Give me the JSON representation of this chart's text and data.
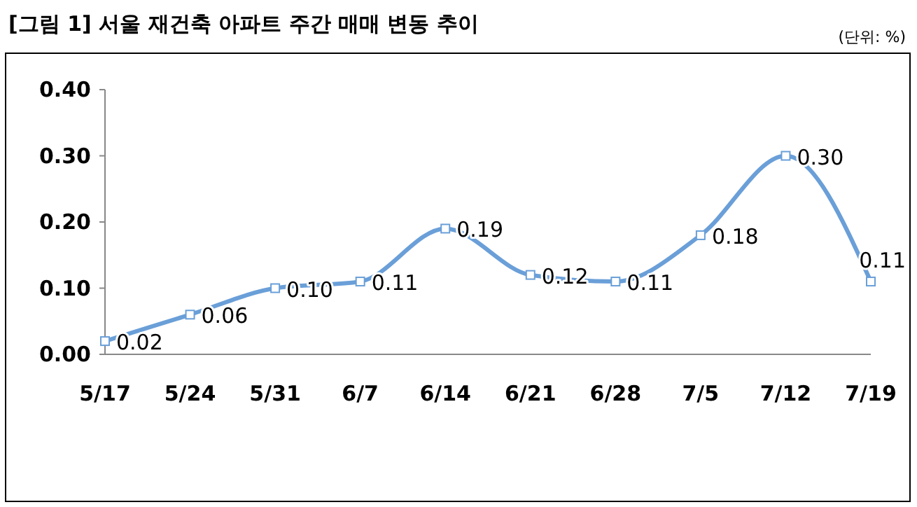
{
  "chart_data": {
    "type": "line",
    "title": "[그림 1] 서울 재건축 아파트 주간 매매 변동 추이",
    "annotations": [
      "(단위: %)"
    ],
    "categories": [
      "5/17",
      "5/24",
      "5/31",
      "6/7",
      "6/14",
      "6/21",
      "6/28",
      "7/5",
      "7/12",
      "7/19"
    ],
    "series": [
      {
        "color": "#6a9fd8",
        "values": [
          0.02,
          0.06,
          0.1,
          0.11,
          0.19,
          0.12,
          0.11,
          0.18,
          0.3,
          0.11
        ],
        "value_labels": [
          "0.02",
          "0.06",
          "0.10",
          "0.11",
          "0.19",
          "0.12",
          "0.11",
          "0.18",
          "0.30",
          "0.11"
        ]
      }
    ],
    "ylim": [
      0,
      0.4
    ],
    "yticks": [
      {
        "value": 0,
        "label": "0.00"
      },
      {
        "value": 0.1,
        "label": "0.10"
      },
      {
        "value": 0.2,
        "label": "0.20"
      },
      {
        "value": 0.3,
        "label": "0.30"
      },
      {
        "value": 0.4,
        "label": "0.40"
      }
    ],
    "grid": false,
    "marker": "square",
    "line_style": "solid"
  }
}
